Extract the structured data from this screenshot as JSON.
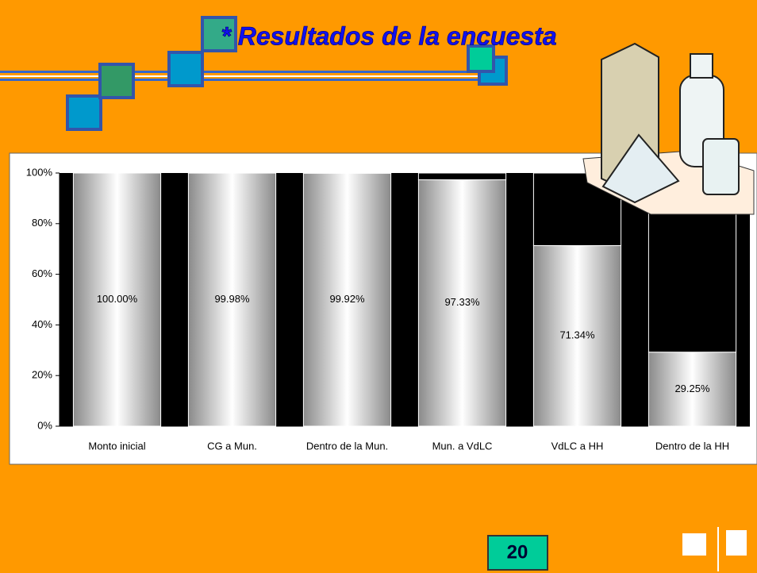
{
  "title": "* Resultados de la encuesta",
  "page_number": "20",
  "chart_data": {
    "type": "stacked_bar",
    "categories": [
      "Monto inicial",
      "CG a Mun.",
      "Dentro de la Mun.",
      "Mun. a VdLC",
      "VdLC a HH",
      "Dentro de la HH"
    ],
    "series": [
      {
        "color": "#c0c0c0",
        "values": [
          100,
          99.98,
          99.92,
          97.33,
          71.34,
          29.25
        ],
        "value_labels": [
          "100.00%",
          "99.98%",
          "99.92%",
          "97.33%",
          "71.34%",
          "29.25%"
        ]
      },
      {
        "color": "#000000",
        "values": [
          0,
          0.02,
          0.08,
          2.67,
          28.66,
          70.75
        ]
      }
    ],
    "ylim": [
      0,
      100
    ],
    "yticks": [
      {
        "value": 0,
        "label": "0%"
      },
      {
        "value": 20,
        "label": "20%"
      },
      {
        "value": 40,
        "label": "40%"
      },
      {
        "value": 60,
        "label": "60%"
      },
      {
        "value": 80,
        "label": "80%"
      },
      {
        "value": 100,
        "label": "100%"
      }
    ],
    "plot_background": "#000000"
  }
}
